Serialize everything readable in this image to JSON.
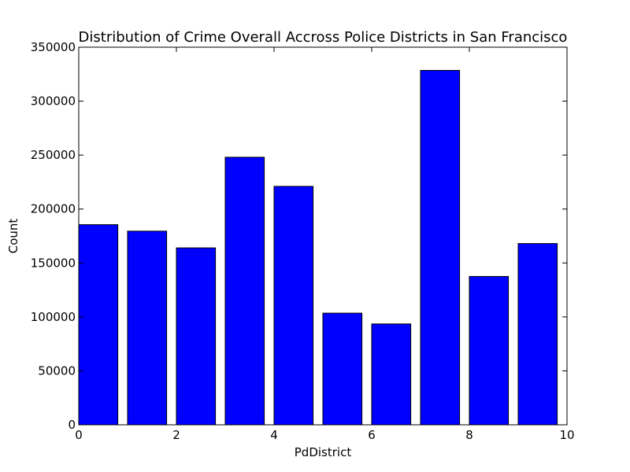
{
  "chart_data": {
    "type": "bar",
    "title": "Distribution of Crime Overall Accross Police Districts in San Francisco",
    "xlabel": "PdDistrict",
    "ylabel": "Count",
    "xlim": [
      0,
      10
    ],
    "ylim": [
      0,
      350000
    ],
    "xticks": [
      0,
      2,
      4,
      6,
      8,
      10
    ],
    "yticks": [
      0,
      50000,
      100000,
      150000,
      200000,
      250000,
      300000,
      350000
    ],
    "bar_width": 0.8,
    "x": [
      0,
      1,
      2,
      3,
      4,
      5,
      6,
      7,
      8,
      9
    ],
    "values": [
      185500,
      179500,
      164000,
      248000,
      221000,
      103500,
      93500,
      328500,
      137500,
      168000
    ],
    "bar_color": "#0000ff",
    "edge_color": "#000000",
    "grid": false
  }
}
